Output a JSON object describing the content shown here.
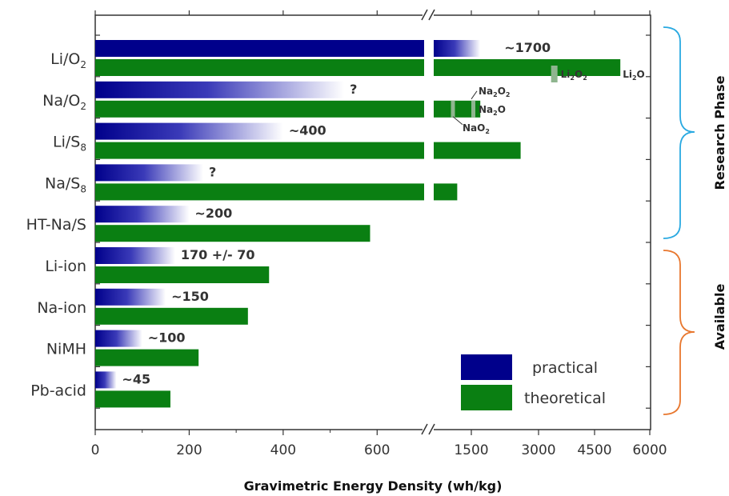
{
  "chart_data": {
    "type": "bar",
    "orientation": "horizontal",
    "xlabel": "Gravimetric Energy Density (wh/kg)",
    "x_ticks": [
      "0",
      "200",
      "400",
      "600",
      "1500",
      "3000",
      "4500",
      "6000"
    ],
    "x_axis_break": "between 600 and 1500",
    "x_range_left_segment": [
      0,
      700
    ],
    "x_range_right_segment": [
      700,
      6000
    ],
    "categories": [
      "Li/O2",
      "Na/O2",
      "Li/S8",
      "Na/S8",
      "HT-Na/S",
      "Li-ion",
      "Na-ion",
      "NiMH",
      "Pb-acid"
    ],
    "category_labels": [
      {
        "main": "Li/O",
        "sub": "2"
      },
      {
        "main": "Na/O",
        "sub": "2"
      },
      {
        "main": "Li/S",
        "sub": "8"
      },
      {
        "main": "Na/S",
        "sub": "8"
      },
      {
        "main": "HT-Na/S",
        "sub": ""
      },
      {
        "main": "Li-ion",
        "sub": ""
      },
      {
        "main": "Na-ion",
        "sub": ""
      },
      {
        "main": "NiMH",
        "sub": ""
      },
      {
        "main": "Pb-acid",
        "sub": ""
      }
    ],
    "series": [
      {
        "name": "practical",
        "color": "#00008B",
        "values": [
          1700,
          530,
          400,
          230,
          200,
          170,
          150,
          100,
          45
        ]
      },
      {
        "name": "theoretical",
        "color": "#0A7F12",
        "values": [
          5200,
          1700,
          2600,
          1200,
          585,
          370,
          325,
          220,
          160
        ]
      }
    ],
    "value_labels": [
      "~1700",
      "?",
      "~400",
      "?",
      "~200",
      "170 +/- 70",
      "~150",
      "~100",
      "~45"
    ],
    "annotations": {
      "li_o2_products": [
        {
          "main": "Li",
          "sub": "2",
          "rest": "O",
          "sub2": "2",
          "value": 3400
        },
        {
          "main": "Li",
          "sub": "2",
          "rest": "O",
          "sub2": "",
          "value": 5200
        }
      ],
      "na_o2_products": [
        {
          "main": "Na",
          "sub": "2",
          "rest": "O",
          "sub2": "2",
          "value": 1600
        },
        {
          "main": "Na",
          "sub": "2",
          "rest": "O",
          "sub2": "",
          "value": 1700
        },
        {
          "main": "NaO",
          "sub": "2",
          "rest": "",
          "sub2": "",
          "value": 1100
        }
      ]
    },
    "groups": [
      {
        "label": "Research Phase",
        "color": "#29A9E1",
        "categories": [
          "Li/O2",
          "Na/O2",
          "Li/S8",
          "Na/S8",
          "HT-Na/S"
        ]
      },
      {
        "label": "Available",
        "color": "#E8772E",
        "categories": [
          "Li-ion",
          "Na-ion",
          "NiMH",
          "Pb-acid"
        ]
      }
    ],
    "legend": {
      "position": "bottom-right",
      "entries": [
        "practical",
        "theoretical"
      ]
    },
    "grid": false
  }
}
